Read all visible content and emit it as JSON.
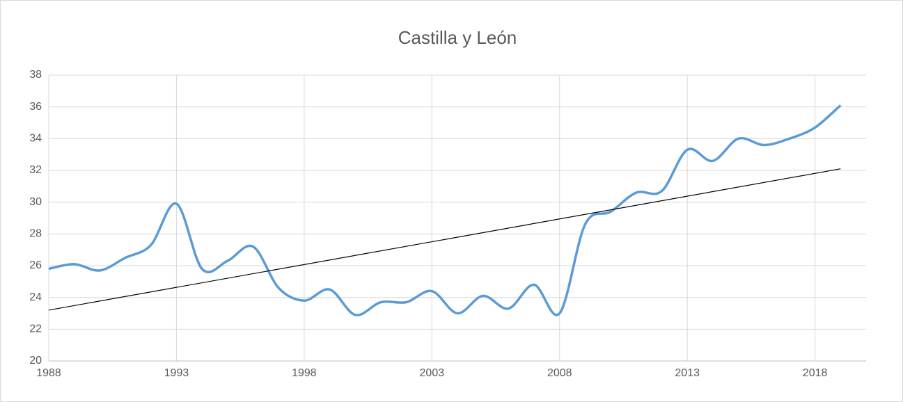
{
  "chart_data": {
    "type": "line",
    "title": "Castilla y León",
    "x": [
      1988,
      1989,
      1990,
      1991,
      1992,
      1993,
      1994,
      1995,
      1996,
      1997,
      1998,
      1999,
      2000,
      2001,
      2002,
      2003,
      2004,
      2005,
      2006,
      2007,
      2008,
      2009,
      2010,
      2011,
      2012,
      2013,
      2014,
      2015,
      2016,
      2017,
      2018,
      2019
    ],
    "series": [
      {
        "color": "#5b9bd5",
        "values": [
          25.8,
          26.1,
          25.7,
          26.5,
          27.3,
          29.9,
          25.8,
          26.3,
          27.2,
          24.6,
          23.8,
          24.5,
          22.9,
          23.7,
          23.7,
          24.4,
          23.0,
          24.1,
          23.3,
          24.8,
          23.0,
          28.6,
          29.4,
          30.6,
          30.7,
          33.3,
          32.6,
          34.0,
          33.6,
          34.0,
          34.7,
          36.1
        ]
      }
    ],
    "trendline": {
      "color": "#000000",
      "x": [
        1988,
        2019
      ],
      "values": [
        23.2,
        32.1
      ]
    },
    "smooth": true,
    "xlim": [
      1988,
      2020
    ],
    "xticks": [
      1988,
      1993,
      1998,
      2003,
      2008,
      2013,
      2018
    ],
    "ylim": [
      20,
      38
    ],
    "yticks": [
      20,
      22,
      24,
      26,
      28,
      30,
      32,
      34,
      36,
      38
    ],
    "grid": true
  }
}
